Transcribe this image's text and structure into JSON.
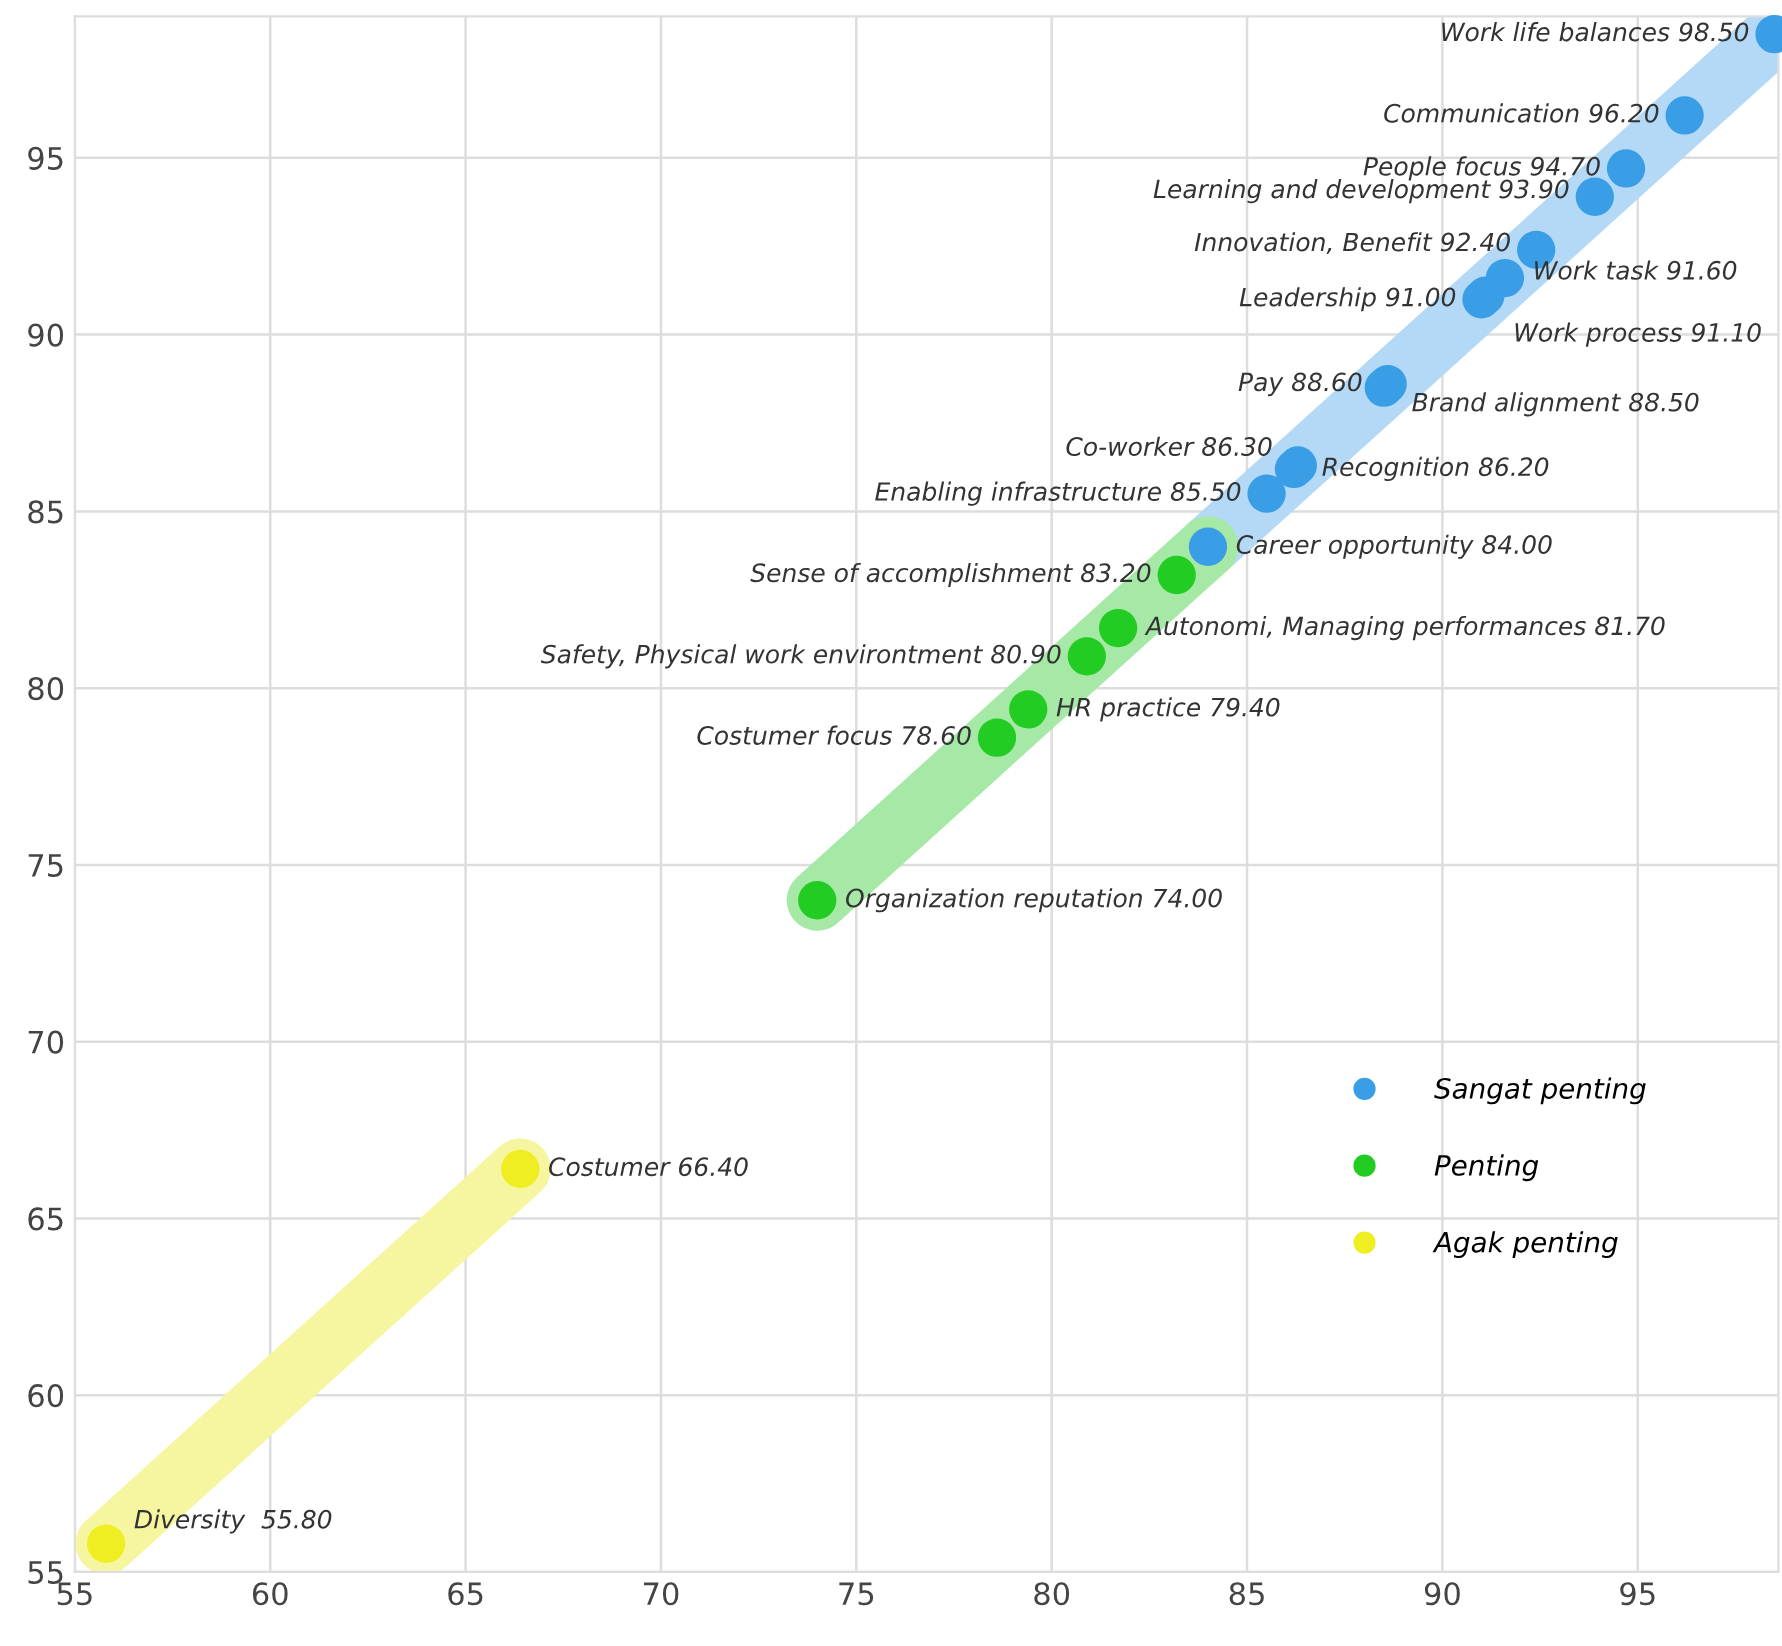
{
  "chart_data": {
    "type": "scatter",
    "xlim": [
      55,
      98.6
    ],
    "ylim": [
      55,
      99
    ],
    "xticks": [
      55,
      60,
      65,
      70,
      75,
      80,
      85,
      90,
      95
    ],
    "yticks": [
      55,
      60,
      65,
      70,
      75,
      80,
      85,
      90,
      95
    ],
    "grid": true,
    "legend": "bottom right",
    "series": [
      {
        "type": "line",
        "color": "#b3d9f7",
        "x": [
          84.0,
          98.5
        ],
        "values": [
          84.0,
          98.5
        ]
      },
      {
        "type": "line",
        "color": "#a6e8a6",
        "x": [
          74.0,
          84.0
        ],
        "values": [
          74.0,
          84.0
        ]
      },
      {
        "type": "line",
        "color": "#f6f6a0",
        "x": [
          55.8,
          66.4
        ],
        "values": [
          55.8,
          66.4
        ]
      },
      {
        "name": "Sangat penting",
        "marker": "circle",
        "color": "#3a9ee6",
        "x": [
          98.5,
          96.2,
          94.7,
          93.9,
          92.4,
          91.6,
          91.0,
          91.1,
          88.6,
          88.5,
          86.3,
          86.2,
          85.5,
          84.0
        ],
        "values": [
          98.5,
          96.2,
          94.7,
          93.9,
          92.4,
          91.6,
          91.0,
          91.1,
          88.6,
          88.5,
          86.3,
          86.2,
          85.5,
          84.0
        ],
        "value_labels": [
          "Work life balances 98.50",
          "Communication 96.20",
          "People focus 94.70",
          "Learning and development 93.90",
          "Innovation, Benefit 92.40",
          "Work task 91.60",
          "Leadership 91.00",
          "Work process 91.10",
          "Pay 88.60",
          "Brand alignment 88.50",
          "Co-worker 86.30",
          "Recognition 86.20",
          "Enabling infrastructure 85.50",
          "Career opportunity 84.00"
        ]
      },
      {
        "name": "Penting",
        "marker": "circle",
        "color": "#22cc22",
        "x": [
          83.2,
          81.7,
          80.9,
          79.4,
          78.6,
          74.0
        ],
        "values": [
          83.2,
          81.7,
          80.9,
          79.4,
          78.6,
          74.0
        ],
        "value_labels": [
          "Sense of accomplishment 83.20",
          "Autonomi, Managing performances 81.70",
          "Safety, Physical work environtment 80.90",
          "HR practice 79.40",
          "Costumer focus 78.60",
          "Organization reputation 74.00"
        ]
      },
      {
        "name": "Agak penting",
        "marker": "circle",
        "color": "#eeee22",
        "x": [
          66.4,
          55.8
        ],
        "values": [
          66.4,
          55.8
        ],
        "value_labels": [
          "Costumer 66.40",
          "Diversity  55.80"
        ]
      }
    ]
  }
}
